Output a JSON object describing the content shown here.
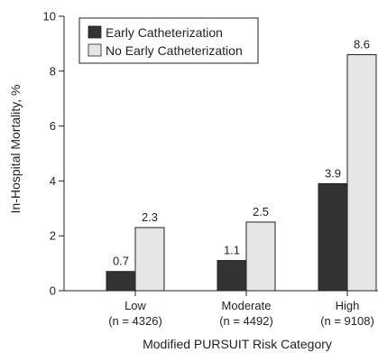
{
  "chart_data": {
    "type": "bar",
    "title": "",
    "xlabel": "Modified PURSUIT Risk Category",
    "ylabel": "In-Hospital Mortality, %",
    "ylim": [
      0,
      10
    ],
    "yticks": [
      "0",
      "2",
      "4",
      "6",
      "8",
      "10"
    ],
    "categories": [
      {
        "name": "Low",
        "n_label": "(n = 4326)"
      },
      {
        "name": "Moderate",
        "n_label": "(n = 4492)"
      },
      {
        "name": "High",
        "n_label": "(n = 9108)"
      }
    ],
    "series": [
      {
        "name": "Early Catheterization",
        "color": "#333333",
        "values": [
          0.7,
          1.1,
          3.9
        ],
        "labels": [
          "0.7",
          "1.1",
          "3.9"
        ]
      },
      {
        "name": "No Early Catheterization",
        "color": "#e6e6e6",
        "values": [
          2.3,
          2.5,
          8.6
        ],
        "labels": [
          "2.3",
          "2.5",
          "8.6"
        ]
      }
    ],
    "legend_position": "top-left",
    "grid": false
  }
}
